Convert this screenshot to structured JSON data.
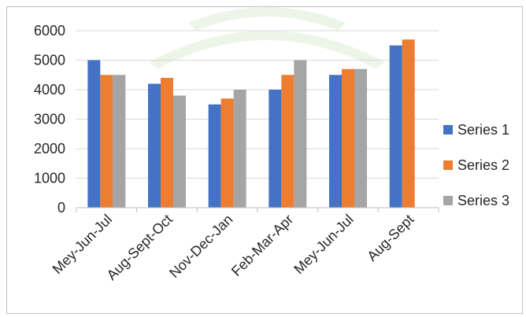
{
  "chart_data": {
    "type": "bar",
    "categories": [
      "Mey-Jun-Jul",
      "Aug-Sept-Oct",
      "Nov-Dec-Jan",
      "Feb-Mar-Apr",
      "Mey-Jun-Jul",
      "Aug-Sept"
    ],
    "series": [
      {
        "name": "Series 1",
        "color": "#4472c4",
        "values": [
          5000,
          4200,
          3500,
          4000,
          4500,
          5500
        ]
      },
      {
        "name": "Series 2",
        "color": "#ed7d31",
        "values": [
          4500,
          4400,
          3700,
          4500,
          4700,
          5700
        ]
      },
      {
        "name": "Series 3",
        "color": "#a5a5a5",
        "values": [
          4500,
          3800,
          4000,
          5000,
          4700,
          null
        ]
      }
    ],
    "ylim": [
      0,
      6000
    ],
    "yticks": [
      "0",
      "1000",
      "2000",
      "3000",
      "4000",
      "5000",
      "6000"
    ],
    "grid": true,
    "legend_position": "right"
  }
}
